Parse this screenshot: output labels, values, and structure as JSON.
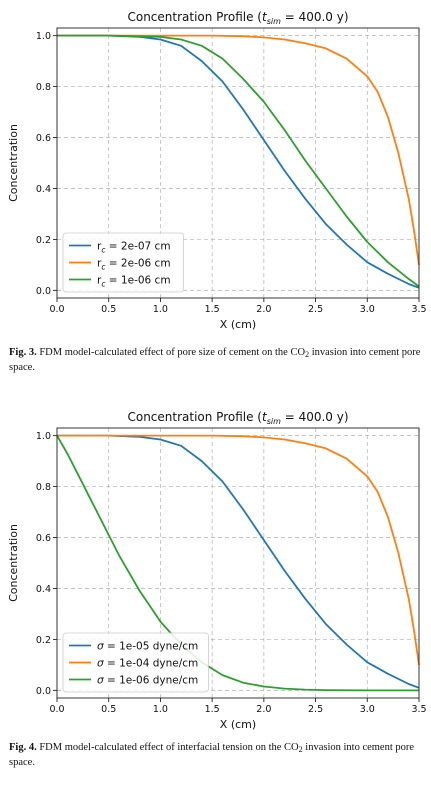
{
  "figures": [
    {
      "caption": {
        "label": "Fig. 3.",
        "text_pre": "FDM model-calculated effect of pore size of cement on the CO",
        "text_sub": "2",
        "text_post": " invasion into cement pore space."
      },
      "chart_data": {
        "type": "line",
        "title": "Concentration Profile   (t_sim = 400.0 y)",
        "title_prefix": "Concentration Profile   (",
        "title_t": "t",
        "title_sub": "sim",
        "title_suffix": " = 400.0 y)",
        "xlabel": "X  (cm)",
        "ylabel": "Concentration",
        "xlim": [
          0,
          3.5
        ],
        "ylim": [
          -0.03,
          1.03
        ],
        "xticks": [
          0.0,
          0.5,
          1.0,
          1.5,
          2.0,
          2.5,
          3.0,
          3.5
        ],
        "xtick_labels": [
          "0.0",
          "0.5",
          "1.0",
          "1.5",
          "2.0",
          "2.5",
          "3.0",
          "3.5"
        ],
        "yticks": [
          0.0,
          0.2,
          0.4,
          0.6,
          0.8,
          1.0
        ],
        "ytick_labels": [
          "0.0",
          "0.2",
          "0.4",
          "0.6",
          "0.8",
          "1.0"
        ],
        "grid": true,
        "legend_position": "lower-left",
        "series": [
          {
            "name": "r_c = 2e-07 cm",
            "legend_prefix": "r",
            "legend_sub": "c",
            "legend_suffix": " = 2e-07 cm",
            "color": "#1f77b4",
            "x": [
              0,
              0.5,
              0.8,
              1.0,
              1.2,
              1.4,
              1.6,
              1.8,
              2.0,
              2.2,
              2.4,
              2.6,
              2.8,
              3.0,
              3.2,
              3.4,
              3.5
            ],
            "y": [
              1.0,
              1.0,
              0.995,
              0.985,
              0.96,
              0.9,
              0.82,
              0.71,
              0.59,
              0.47,
              0.36,
              0.26,
              0.18,
              0.11,
              0.065,
              0.025,
              0.01
            ]
          },
          {
            "name": "r_c = 2e-06 cm",
            "legend_prefix": "r",
            "legend_sub": "c",
            "legend_suffix": " = 2e-06 cm",
            "color": "#ff7f0e",
            "x": [
              0,
              1.0,
              1.5,
              1.8,
              2.0,
              2.2,
              2.4,
              2.6,
              2.8,
              3.0,
              3.1,
              3.2,
              3.3,
              3.4,
              3.45,
              3.5
            ],
            "y": [
              1.0,
              1.0,
              1.0,
              0.998,
              0.993,
              0.985,
              0.97,
              0.95,
              0.91,
              0.84,
              0.78,
              0.68,
              0.54,
              0.36,
              0.24,
              0.1
            ]
          },
          {
            "name": "r_c = 1e-06 cm",
            "legend_prefix": "r",
            "legend_sub": "c",
            "legend_suffix": " = 1e-06 cm",
            "color": "#2ca02c",
            "x": [
              0,
              0.5,
              1.0,
              1.2,
              1.4,
              1.6,
              1.8,
              2.0,
              2.2,
              2.4,
              2.6,
              2.8,
              3.0,
              3.2,
              3.4,
              3.5
            ],
            "y": [
              1.0,
              1.0,
              0.995,
              0.985,
              0.96,
              0.91,
              0.83,
              0.74,
              0.63,
              0.51,
              0.4,
              0.29,
              0.19,
              0.11,
              0.045,
              0.015
            ]
          }
        ]
      }
    },
    {
      "caption": {
        "label": "Fig. 4.",
        "text_pre": "FDM model-calculated effect of interfacial tension on the CO",
        "text_sub": "2",
        "text_post": " invasion into cement pore space."
      },
      "chart_data": {
        "type": "line",
        "title": "Concentration Profile   (t_sim = 400.0 y)",
        "title_prefix": "Concentration Profile   (",
        "title_t": "t",
        "title_sub": "sim",
        "title_suffix": " = 400.0 y)",
        "xlabel": "X  (cm)",
        "ylabel": "Concentration",
        "xlim": [
          0,
          3.5
        ],
        "ylim": [
          -0.03,
          1.03
        ],
        "xticks": [
          0.0,
          0.5,
          1.0,
          1.5,
          2.0,
          2.5,
          3.0,
          3.5
        ],
        "xtick_labels": [
          "0.0",
          "0.5",
          "1.0",
          "1.5",
          "2.0",
          "2.5",
          "3.0",
          "3.5"
        ],
        "yticks": [
          0.0,
          0.2,
          0.4,
          0.6,
          0.8,
          1.0
        ],
        "ytick_labels": [
          "0.0",
          "0.2",
          "0.4",
          "0.6",
          "0.8",
          "1.0"
        ],
        "grid": true,
        "legend_position": "lower-left",
        "series": [
          {
            "name": "σ = 1e-05 dyne/cm",
            "legend_prefix": "σ",
            "legend_sub": "",
            "legend_suffix": " = 1e-05 dyne/cm",
            "color": "#1f77b4",
            "x": [
              0,
              0.5,
              0.8,
              1.0,
              1.2,
              1.4,
              1.6,
              1.8,
              2.0,
              2.2,
              2.4,
              2.6,
              2.8,
              3.0,
              3.2,
              3.4,
              3.5
            ],
            "y": [
              1.0,
              1.0,
              0.995,
              0.985,
              0.96,
              0.9,
              0.82,
              0.71,
              0.59,
              0.47,
              0.36,
              0.26,
              0.18,
              0.11,
              0.065,
              0.025,
              0.01
            ]
          },
          {
            "name": "σ = 1e-04 dyne/cm",
            "legend_prefix": "σ",
            "legend_sub": "",
            "legend_suffix": " = 1e-04 dyne/cm",
            "color": "#ff7f0e",
            "x": [
              0,
              1.0,
              1.5,
              1.8,
              2.0,
              2.2,
              2.4,
              2.6,
              2.8,
              3.0,
              3.1,
              3.2,
              3.3,
              3.4,
              3.45,
              3.5
            ],
            "y": [
              1.0,
              1.0,
              1.0,
              0.998,
              0.993,
              0.985,
              0.97,
              0.95,
              0.91,
              0.84,
              0.78,
              0.68,
              0.54,
              0.36,
              0.24,
              0.1
            ]
          },
          {
            "name": "σ = 1e-06 dyne/cm",
            "legend_prefix": "σ",
            "legend_sub": "",
            "legend_suffix": " = 1e-06 dyne/cm",
            "color": "#2ca02c",
            "x": [
              0,
              0.1,
              0.2,
              0.3,
              0.4,
              0.5,
              0.6,
              0.7,
              0.8,
              0.9,
              1.0,
              1.2,
              1.4,
              1.6,
              1.8,
              2.0,
              2.2,
              2.4,
              2.6,
              3.0,
              3.5
            ],
            "y": [
              1.0,
              0.93,
              0.85,
              0.77,
              0.69,
              0.61,
              0.53,
              0.46,
              0.39,
              0.33,
              0.27,
              0.18,
              0.11,
              0.06,
              0.03,
              0.015,
              0.007,
              0.003,
              0.001,
              0.0,
              0.0
            ]
          }
        ]
      }
    }
  ]
}
